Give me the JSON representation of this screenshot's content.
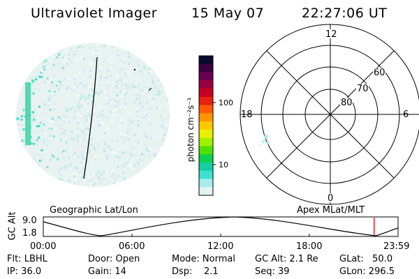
{
  "header": {
    "instrument": "Ultraviolet Imager",
    "date": "15 May 07",
    "time": "22:27:06 UT"
  },
  "colorbar": {
    "label": "photon cm⁻²s⁻¹",
    "tick_labels": [
      "100",
      "10"
    ],
    "colors": [
      "#0a0a2e",
      "#3a0040",
      "#6a0050",
      "#9a0040",
      "#c80020",
      "#e82010",
      "#ff5a00",
      "#ff9600",
      "#ffc800",
      "#e6f000",
      "#a0f000",
      "#50e000",
      "#10d050",
      "#10d0a0",
      "#40e0d0",
      "#a8ece8",
      "#e0f4f2"
    ]
  },
  "polar_grid": {
    "mlt_labels": {
      "top": "12",
      "left": "18",
      "right": "6",
      "bottom": "0"
    },
    "lat_labels": [
      "60",
      "70",
      "80"
    ]
  },
  "timeline": {
    "left_label": "Geographic Lat/Lon",
    "right_label": "Apex MLat/MLT",
    "y_axis_label": "GC Alt",
    "y_ticks": [
      "9.0",
      "1.8"
    ],
    "x_ticks": [
      "00:00",
      "06:00",
      "12:00",
      "18:00",
      "23:59"
    ],
    "current_time_fraction": 0.9326,
    "marker_color": "#dd0000"
  },
  "info": {
    "flt": "Flt: LBHL",
    "ip": "IP: 36.0",
    "door": "Door: Open",
    "gain": "Gain: 14",
    "mode": "Mode: Normal",
    "dsp": "Dsp:    2.1",
    "gc_alt": "GC Alt: 2.1 Re",
    "seq": "Seq: 39",
    "glat": "GLat:   50.0",
    "glon": "GLon: 296.5"
  }
}
